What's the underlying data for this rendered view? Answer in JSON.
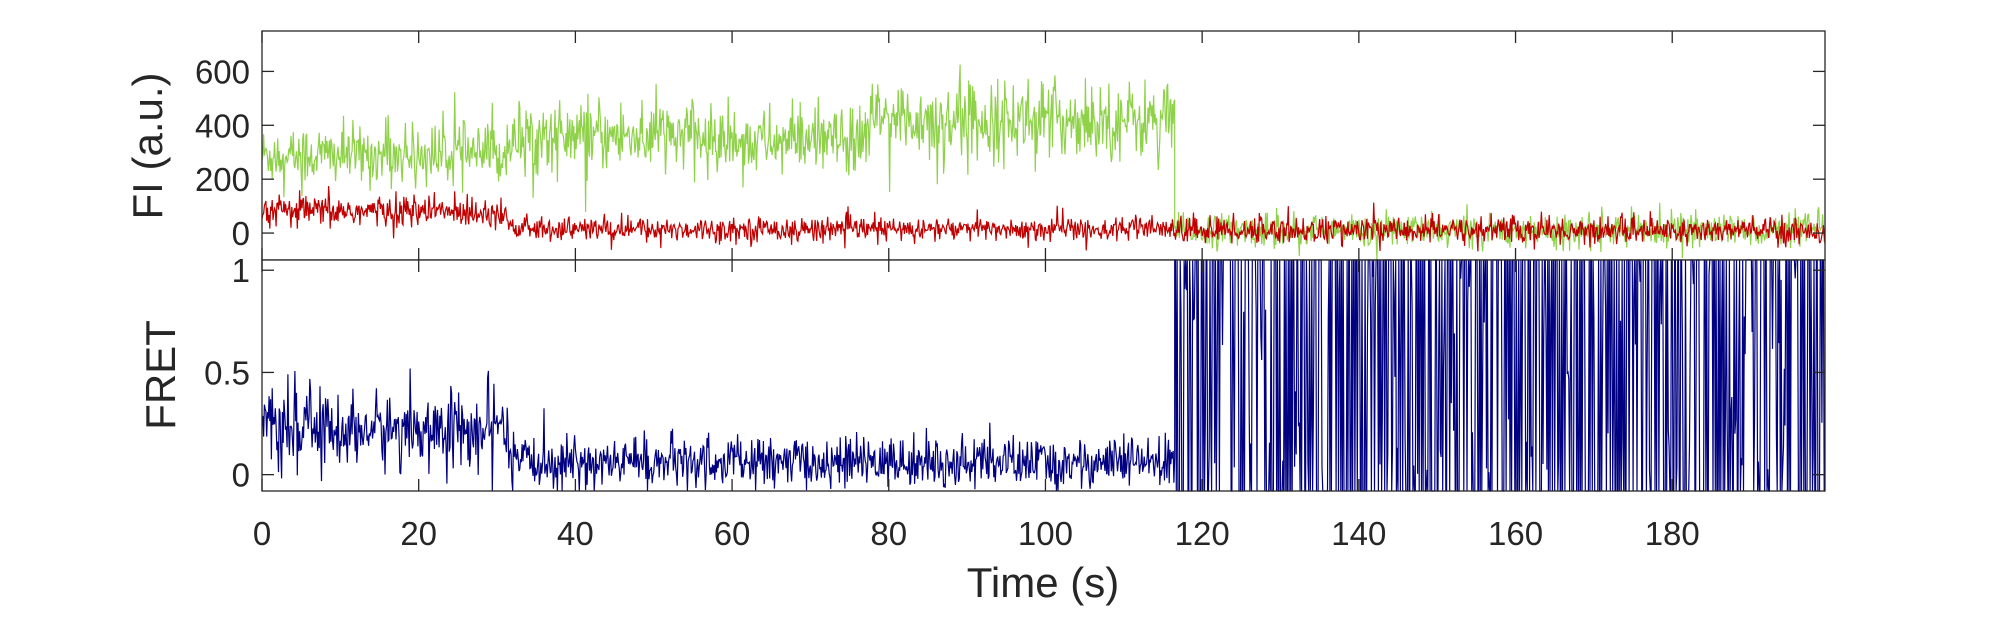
{
  "chart_data": [
    {
      "panel": "top",
      "type": "line",
      "ylabel": "FI (a.u.)",
      "xlim": [
        0,
        199.5
      ],
      "ylim": [
        -100,
        750
      ],
      "yticks": [
        0,
        200,
        400,
        600
      ],
      "ytick_labels": [
        "0",
        "200",
        "400",
        "600"
      ],
      "grid": false,
      "series": [
        {
          "color": "#8fd24a",
          "segments": [
            {
              "x_start": 0,
              "x_end": 31.5,
              "mean": 290,
              "sd": 55
            },
            {
              "x_start": 31.5,
              "x_end": 56,
              "mean": 360,
              "sd": 65
            },
            {
              "x_start": 56,
              "x_end": 77,
              "mean": 340,
              "sd": 60
            },
            {
              "x_start": 77,
              "x_end": 116.5,
              "mean": 420,
              "sd": 70
            },
            {
              "x_start": 116.5,
              "x_end": 199.5,
              "mean": 10,
              "sd": 30
            }
          ]
        },
        {
          "color": "#c00000",
          "segments": [
            {
              "x_start": 0,
              "x_end": 31.5,
              "mean": 80,
              "sd": 30
            },
            {
              "x_start": 31.5,
              "x_end": 116.5,
              "mean": 15,
              "sd": 22
            },
            {
              "x_start": 116.5,
              "x_end": 199.5,
              "mean": 10,
              "sd": 25
            }
          ]
        }
      ]
    },
    {
      "panel": "bottom",
      "type": "line",
      "ylabel": "FRET",
      "xlabel": "Time (s)",
      "xlim": [
        0,
        199.5
      ],
      "ylim": [
        -0.08,
        1.05
      ],
      "xticks": [
        0,
        20,
        40,
        60,
        80,
        100,
        120,
        140,
        160,
        180
      ],
      "xtick_labels": [
        "0",
        "20",
        "40",
        "60",
        "80",
        "100",
        "120",
        "140",
        "160",
        "180"
      ],
      "yticks": [
        0,
        0.5,
        1
      ],
      "ytick_labels": [
        "0",
        "0.5",
        "1"
      ],
      "grid": false,
      "series": [
        {
          "color": "#000080",
          "segments": [
            {
              "x_start": 0,
              "x_end": 31.5,
              "mean": 0.22,
              "sd": 0.09
            },
            {
              "x_start": 31.5,
              "x_end": 116.5,
              "mean": 0.06,
              "sd": 0.06
            },
            {
              "x_start": 116.5,
              "x_end": 199.5,
              "mean": "random 0-1",
              "sd": 0
            }
          ]
        }
      ]
    }
  ]
}
